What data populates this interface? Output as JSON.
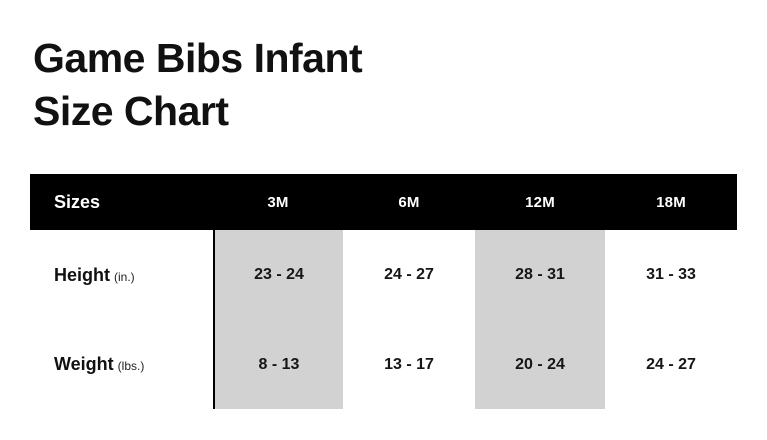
{
  "title": {
    "line1": "Game Bibs Infant",
    "line2": "Size Chart"
  },
  "chart_data": {
    "type": "table",
    "title": "Game Bibs Infant Size Chart",
    "header_label": "Sizes",
    "columns": [
      "3M",
      "6M",
      "12M",
      "18M"
    ],
    "rows": [
      {
        "label": "Height",
        "unit": "(in.)",
        "values": [
          "23 - 24",
          "24 - 27",
          "28 - 31",
          "31 - 33"
        ]
      },
      {
        "label": "Weight",
        "unit": "(lbs.)",
        "values": [
          "8 - 13",
          "13 - 17",
          "20 - 24",
          "24 - 27"
        ]
      }
    ],
    "highlighted_columns": [
      "3M",
      "12M"
    ],
    "colors": {
      "header_bg": "#000000",
      "header_text": "#ffffff",
      "highlight": "#d2d2d2",
      "text": "#111111",
      "background": "#ffffff"
    },
    "layout": {
      "legend": "none",
      "grid": "off"
    }
  }
}
